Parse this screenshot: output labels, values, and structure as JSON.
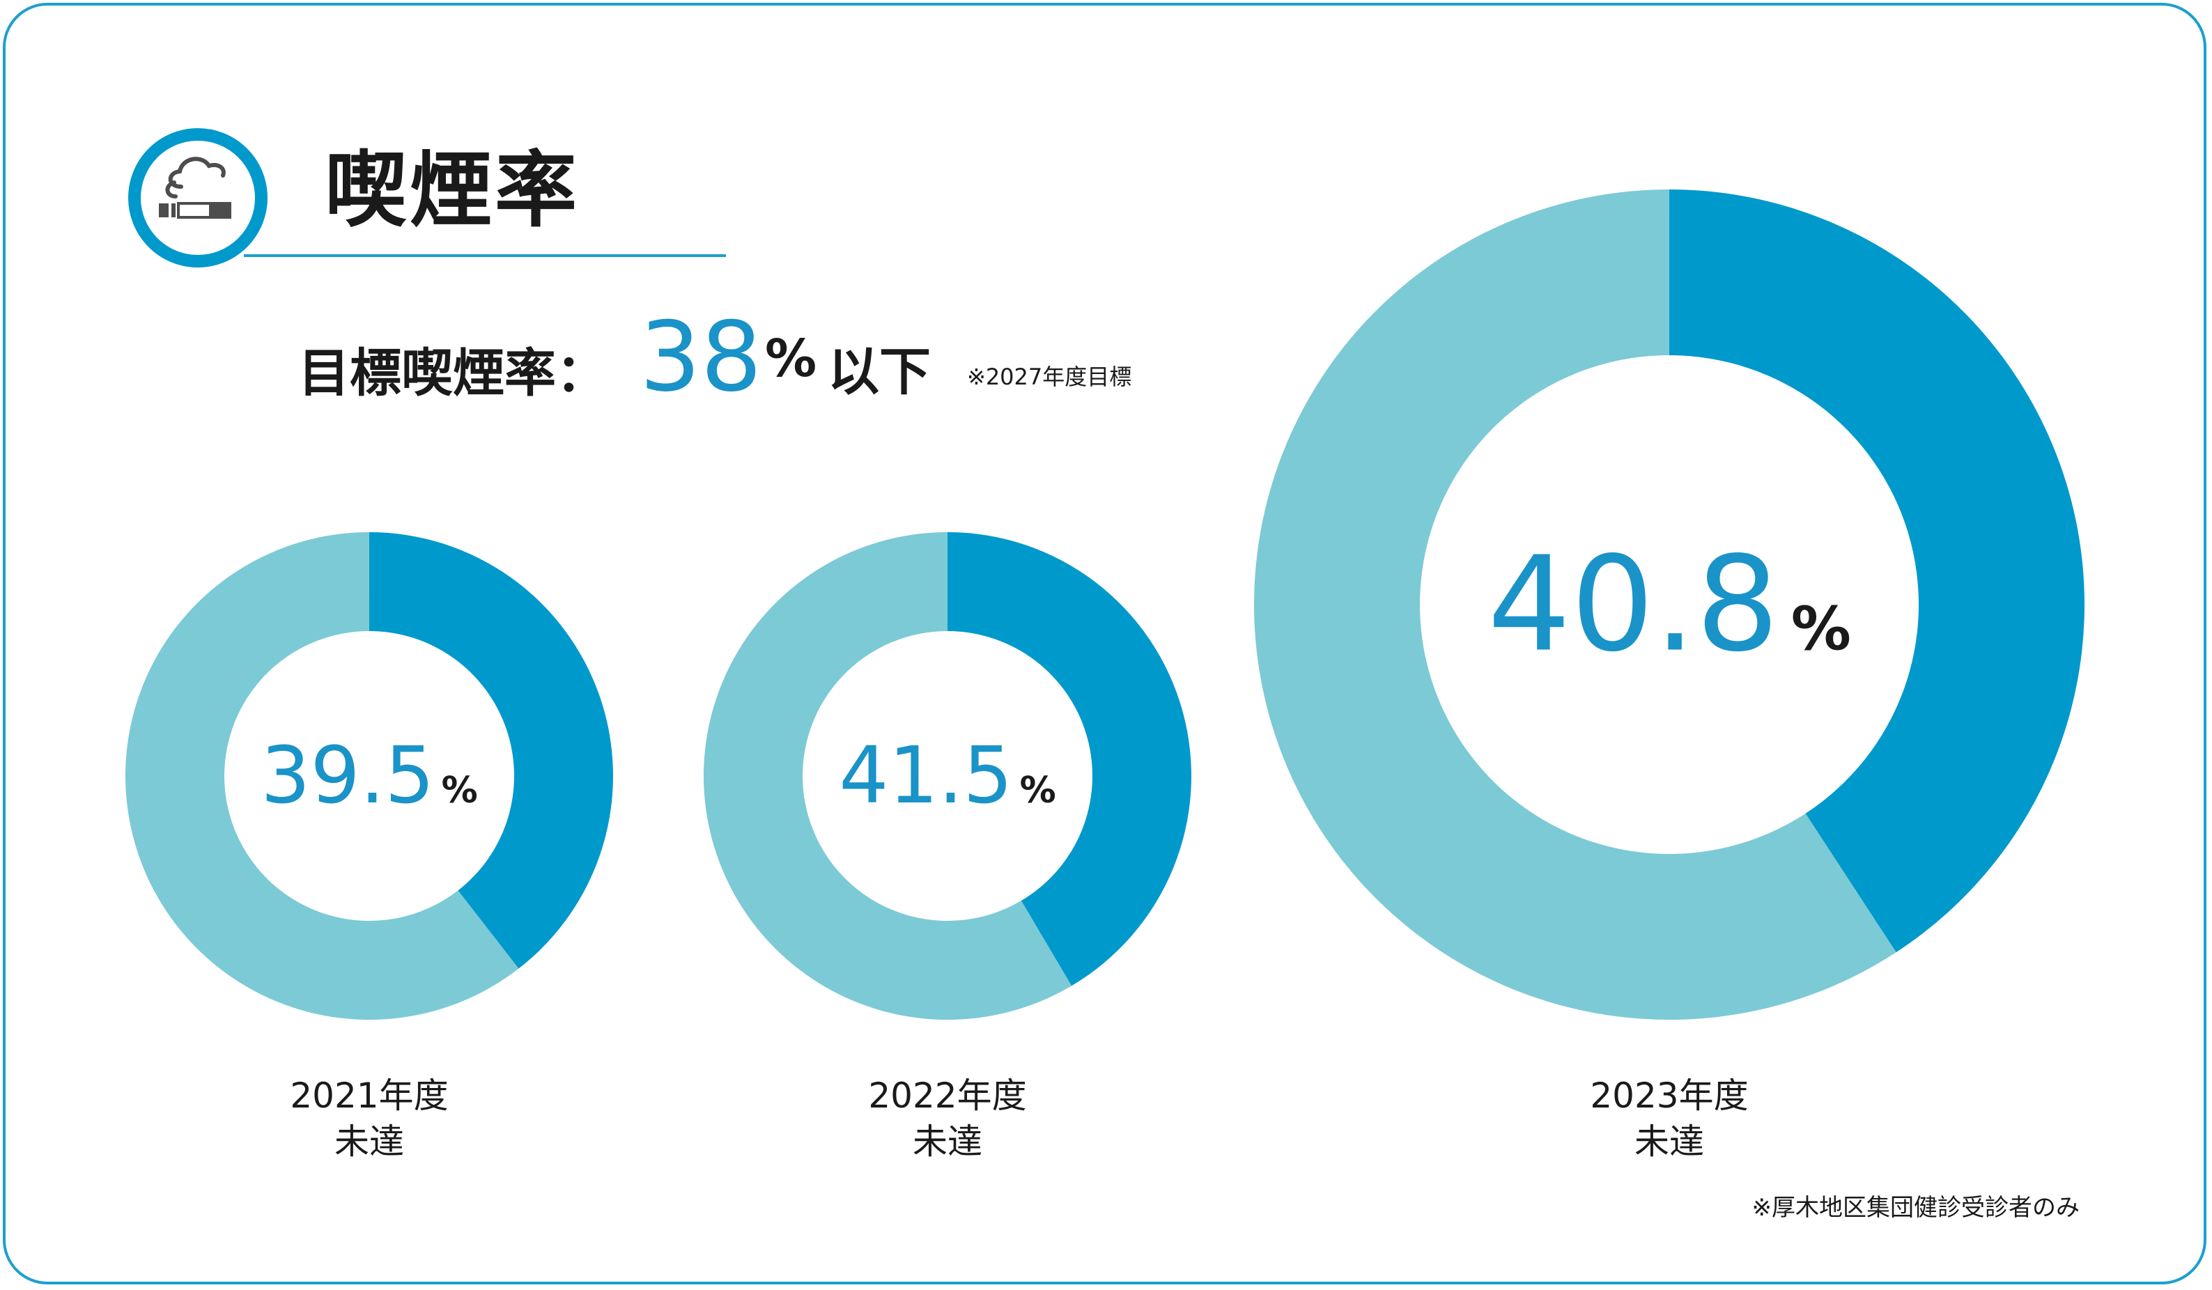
{
  "title": "喫煙率",
  "target": {
    "label": "目標喫煙率：",
    "value": "38",
    "percent_sign": "%",
    "suffix": "以下",
    "note": "※2027年度目標"
  },
  "icon": "smoking-icon",
  "colors": {
    "accent": "#0099CC",
    "ring_light": "#7CCAD5",
    "frame": "#1AA0CF",
    "text_value": "#1A93C8"
  },
  "footnote": "※厚木地区集団健診受診者のみ",
  "chart_data": {
    "type": "pie",
    "chart_subtype": "donut",
    "series": [
      {
        "year_label": "2021年度",
        "status": "未達",
        "value": 39.5,
        "value_label": "39.5",
        "unit": "%"
      },
      {
        "year_label": "2022年度",
        "status": "未達",
        "value": 41.5,
        "value_label": "41.5",
        "unit": "%"
      },
      {
        "year_label": "2023年度",
        "status": "未達",
        "value": 40.8,
        "value_label": "40.8",
        "unit": "%"
      }
    ]
  }
}
